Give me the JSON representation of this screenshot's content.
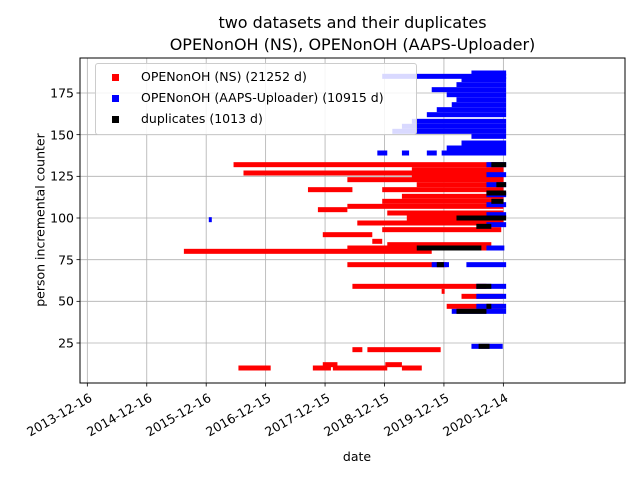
{
  "title_line1": "two datasets and their duplicates",
  "title_line2": "OPENonOH (NS), OPENonOH (AAPS-Uploader)",
  "chart_data": {
    "type": "scatter",
    "title": "two datasets and their duplicates\nOPENonOH (NS), OPENonOH (AAPS-Uploader)",
    "xlabel": "date",
    "ylabel": "person incremental counter",
    "x_type": "date",
    "xlim": [
      "2013-11-01",
      "2022-12-31"
    ],
    "ylim": [
      1,
      196
    ],
    "xticks": [
      "2013-12-16",
      "2014-12-16",
      "2015-12-16",
      "2016-12-15",
      "2017-12-15",
      "2018-12-15",
      "2019-12-15",
      "2020-12-14"
    ],
    "yticks": [
      25,
      50,
      75,
      100,
      125,
      150,
      175
    ],
    "grid": true,
    "legend_position": "top-left",
    "series": [
      {
        "name": "OPENonOH (NS) (21252 d)",
        "color": "#ff0000",
        "segments": [
          {
            "y": 10,
            "x": [
              "2016-07-01",
              "2017-01-15"
            ]
          },
          {
            "y": 10,
            "x": [
              "2017-10-01",
              "2018-01-20"
            ]
          },
          {
            "y": 12,
            "x": [
              "2017-12-01",
              "2018-03-01"
            ]
          },
          {
            "y": 10,
            "x": [
              "2018-02-01",
              "2019-01-01"
            ]
          },
          {
            "y": 12,
            "x": [
              "2018-12-20",
              "2019-04-01"
            ]
          },
          {
            "y": 10,
            "x": [
              "2019-04-01",
              "2019-08-01"
            ]
          },
          {
            "y": 21,
            "x": [
              "2018-06-01",
              "2018-08-01"
            ]
          },
          {
            "y": 21,
            "x": [
              "2018-09-01",
              "2019-11-25"
            ]
          },
          {
            "y": 47,
            "x": [
              "2020-01-01",
              "2020-12-10"
            ]
          },
          {
            "y": 53,
            "x": [
              "2020-04-01",
              "2020-12-10"
            ]
          },
          {
            "y": 56,
            "x": [
              "2019-12-01",
              "2019-12-15"
            ]
          },
          {
            "y": 59,
            "x": [
              "2018-06-01",
              "2020-09-01"
            ]
          },
          {
            "y": 72,
            "x": [
              "2018-05-01",
              "2020-01-01"
            ]
          },
          {
            "y": 80,
            "x": [
              "2015-08-01",
              "2019-10-01"
            ]
          },
          {
            "y": 82,
            "x": [
              "2018-05-01",
              "2020-11-01"
            ]
          },
          {
            "y": 84,
            "x": [
              "2019-01-01",
              "2020-10-01"
            ]
          },
          {
            "y": 86,
            "x": [
              "2018-10-01",
              "2018-12-01"
            ]
          },
          {
            "y": 90,
            "x": [
              "2017-12-01",
              "2018-10-01"
            ]
          },
          {
            "y": 93,
            "x": [
              "2018-12-01",
              "2020-12-01"
            ]
          },
          {
            "y": 97,
            "x": [
              "2018-07-01",
              "2020-12-15"
            ]
          },
          {
            "y": 100,
            "x": [
              "2019-05-01",
              "2020-12-15"
            ]
          },
          {
            "y": 103,
            "x": [
              "2019-01-01",
              "2020-12-15"
            ]
          },
          {
            "y": 105,
            "x": [
              "2017-11-01",
              "2018-05-01"
            ]
          },
          {
            "y": 107,
            "x": [
              "2018-05-01",
              "2020-12-15"
            ]
          },
          {
            "y": 110,
            "x": [
              "2018-12-01",
              "2020-12-15"
            ]
          },
          {
            "y": 113,
            "x": [
              "2019-04-01",
              "2020-12-15"
            ]
          },
          {
            "y": 117,
            "x": [
              "2017-09-01",
              "2018-06-01"
            ]
          },
          {
            "y": 117,
            "x": [
              "2018-12-01",
              "2020-12-15"
            ]
          },
          {
            "y": 120,
            "x": [
              "2019-07-01",
              "2020-12-15"
            ]
          },
          {
            "y": 123,
            "x": [
              "2018-05-01",
              "2020-12-15"
            ]
          },
          {
            "y": 125,
            "x": [
              "2019-06-01",
              "2020-12-15"
            ]
          },
          {
            "y": 127,
            "x": [
              "2016-08-01",
              "2020-12-15"
            ]
          },
          {
            "y": 129,
            "x": [
              "2019-06-01",
              "2020-12-15"
            ]
          },
          {
            "y": 132,
            "x": [
              "2016-06-01",
              "2020-12-15"
            ]
          }
        ]
      },
      {
        "name": "OPENonOH (AAPS-Uploader) (10915 d)",
        "color": "#0000ff",
        "segments": [
          {
            "y": 23,
            "x": [
              "2020-06-01",
              "2020-12-10"
            ]
          },
          {
            "y": 44,
            "x": [
              "2020-02-01",
              "2020-12-31"
            ]
          },
          {
            "y": 47,
            "x": [
              "2020-07-01",
              "2020-12-31"
            ]
          },
          {
            "y": 53,
            "x": [
              "2020-07-01",
              "2020-12-31"
            ]
          },
          {
            "y": 59,
            "x": [
              "2020-07-01",
              "2020-12-31"
            ]
          },
          {
            "y": 72,
            "x": [
              "2019-10-01",
              "2020-01-15"
            ]
          },
          {
            "y": 72,
            "x": [
              "2020-05-01",
              "2020-12-31"
            ]
          },
          {
            "y": 82,
            "x": [
              "2020-09-01",
              "2020-12-20"
            ]
          },
          {
            "y": 96,
            "x": [
              "2020-09-01",
              "2020-12-31"
            ]
          },
          {
            "y": 99,
            "x": [
              "2016-01-01",
              "2016-01-15"
            ]
          },
          {
            "y": 102,
            "x": [
              "2020-09-01",
              "2020-12-31"
            ]
          },
          {
            "y": 108,
            "x": [
              "2020-09-01",
              "2020-12-31"
            ]
          },
          {
            "y": 114,
            "x": [
              "2020-09-01",
              "2020-12-31"
            ]
          },
          {
            "y": 120,
            "x": [
              "2020-09-01",
              "2020-12-31"
            ]
          },
          {
            "y": 126,
            "x": [
              "2020-09-01",
              "2020-12-31"
            ]
          },
          {
            "y": 132,
            "x": [
              "2020-09-01",
              "2020-12-31"
            ]
          },
          {
            "y": 139,
            "x": [
              "2018-11-01",
              "2019-01-01"
            ]
          },
          {
            "y": 139,
            "x": [
              "2019-04-01",
              "2019-05-15"
            ]
          },
          {
            "y": 139,
            "x": [
              "2019-09-01",
              "2019-11-01"
            ]
          },
          {
            "y": 139,
            "x": [
              "2019-12-01",
              "2020-12-31"
            ]
          },
          {
            "y": 142,
            "x": [
              "2020-01-01",
              "2020-12-31"
            ]
          },
          {
            "y": 145,
            "x": [
              "2020-04-01",
              "2020-12-31"
            ]
          },
          {
            "y": 149,
            "x": [
              "2020-06-01",
              "2020-12-31"
            ]
          },
          {
            "y": 152,
            "x": [
              "2019-02-01",
              "2020-12-31"
            ]
          },
          {
            "y": 155,
            "x": [
              "2019-04-01",
              "2020-12-31"
            ]
          },
          {
            "y": 158,
            "x": [
              "2019-06-01",
              "2020-12-31"
            ]
          },
          {
            "y": 162,
            "x": [
              "2019-09-01",
              "2020-12-31"
            ]
          },
          {
            "y": 165,
            "x": [
              "2019-11-01",
              "2020-12-31"
            ]
          },
          {
            "y": 168,
            "x": [
              "2020-02-01",
              "2020-12-31"
            ]
          },
          {
            "y": 171,
            "x": [
              "2020-03-01",
              "2020-12-31"
            ]
          },
          {
            "y": 174,
            "x": [
              "2020-01-01",
              "2020-12-31"
            ]
          },
          {
            "y": 177,
            "x": [
              "2019-10-01",
              "2020-12-31"
            ]
          },
          {
            "y": 180,
            "x": [
              "2020-03-01",
              "2020-12-31"
            ]
          },
          {
            "y": 183,
            "x": [
              "2020-04-01",
              "2020-12-31"
            ]
          },
          {
            "y": 185,
            "x": [
              "2018-12-01",
              "2020-12-31"
            ]
          },
          {
            "y": 187,
            "x": [
              "2020-06-01",
              "2020-12-31"
            ]
          }
        ]
      },
      {
        "name": "duplicates (1013 d)",
        "color": "#000000",
        "segments": [
          {
            "y": 23,
            "x": [
              "2020-07-15",
              "2020-09-20"
            ]
          },
          {
            "y": 44,
            "x": [
              "2020-03-01",
              "2020-09-01"
            ]
          },
          {
            "y": 47,
            "x": [
              "2020-09-01",
              "2020-10-01"
            ]
          },
          {
            "y": 59,
            "x": [
              "2020-07-01",
              "2020-10-01"
            ]
          },
          {
            "y": 72,
            "x": [
              "2019-11-01",
              "2019-12-15"
            ]
          },
          {
            "y": 82,
            "x": [
              "2019-07-01",
              "2020-08-01"
            ]
          },
          {
            "y": 95,
            "x": [
              "2020-07-01",
              "2020-10-01"
            ]
          },
          {
            "y": 100,
            "x": [
              "2020-03-01",
              "2020-12-31"
            ]
          },
          {
            "y": 110,
            "x": [
              "2020-10-01",
              "2020-12-15"
            ]
          },
          {
            "y": 115,
            "x": [
              "2020-09-01",
              "2020-12-31"
            ]
          },
          {
            "y": 120,
            "x": [
              "2020-11-01",
              "2020-12-31"
            ]
          },
          {
            "y": 132,
            "x": [
              "2020-10-01",
              "2020-12-31"
            ]
          }
        ]
      }
    ]
  }
}
